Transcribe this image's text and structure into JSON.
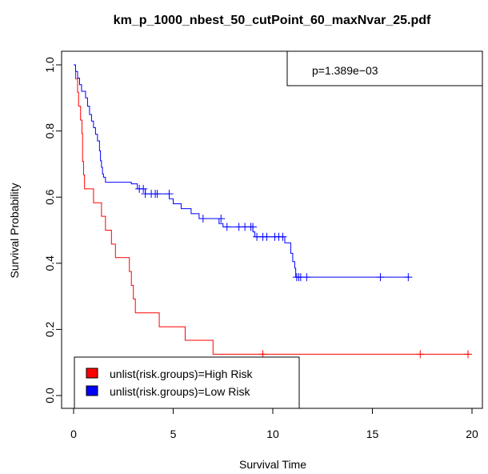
{
  "chart_data": {
    "type": "line",
    "title": "km_p_1000_nbest_50_cutPoint_60_maxNvar_25.pdf",
    "xlabel": "Survival Time",
    "ylabel": "Survival Probability",
    "xlim": [
      0,
      20
    ],
    "ylim": [
      0,
      1
    ],
    "x_ticks": [
      "0",
      "5",
      "10",
      "15",
      "20"
    ],
    "y_ticks": [
      "0.0",
      "0.2",
      "0.4",
      "0.6",
      "0.8",
      "1.0"
    ],
    "grid": false,
    "annotation": "p=1.389e−03",
    "legend_position": "bottom-left",
    "series": [
      {
        "name": "unlist(risk.groups)=High Risk",
        "color": "#ff0000",
        "steps": [
          [
            0,
            1.0
          ],
          [
            0.1,
            0.958
          ],
          [
            0.2,
            0.917
          ],
          [
            0.25,
            0.875
          ],
          [
            0.35,
            0.833
          ],
          [
            0.42,
            0.792
          ],
          [
            0.45,
            0.708
          ],
          [
            0.5,
            0.667
          ],
          [
            0.55,
            0.625
          ],
          [
            1.0,
            0.583
          ],
          [
            1.4,
            0.542
          ],
          [
            1.6,
            0.5
          ],
          [
            1.9,
            0.458
          ],
          [
            2.1,
            0.417
          ],
          [
            2.8,
            0.375
          ],
          [
            2.9,
            0.333
          ],
          [
            3.0,
            0.292
          ],
          [
            3.1,
            0.25
          ],
          [
            4.3,
            0.208
          ],
          [
            5.6,
            0.167
          ],
          [
            7.0,
            0.125
          ],
          [
            19.9,
            0.125
          ]
        ],
        "censor": [
          [
            9.5,
            0.125
          ],
          [
            17.4,
            0.125
          ],
          [
            19.8,
            0.125
          ]
        ]
      },
      {
        "name": "unlist(risk.groups)=Low Risk",
        "color": "#0000ff",
        "steps": [
          [
            0,
            1.0
          ],
          [
            0.1,
            0.98
          ],
          [
            0.2,
            0.96
          ],
          [
            0.3,
            0.94
          ],
          [
            0.4,
            0.92
          ],
          [
            0.6,
            0.9
          ],
          [
            0.7,
            0.875
          ],
          [
            0.8,
            0.85
          ],
          [
            0.9,
            0.83
          ],
          [
            1.0,
            0.81
          ],
          [
            1.1,
            0.79
          ],
          [
            1.2,
            0.77
          ],
          [
            1.3,
            0.74
          ],
          [
            1.35,
            0.71
          ],
          [
            1.4,
            0.69
          ],
          [
            1.45,
            0.67
          ],
          [
            1.5,
            0.66
          ],
          [
            1.6,
            0.645
          ],
          [
            2.9,
            0.64
          ],
          [
            3.2,
            0.625
          ],
          [
            3.6,
            0.61
          ],
          [
            4.8,
            0.595
          ],
          [
            5.0,
            0.58
          ],
          [
            5.4,
            0.565
          ],
          [
            5.9,
            0.55
          ],
          [
            6.3,
            0.535
          ],
          [
            7.3,
            0.52
          ],
          [
            7.5,
            0.51
          ],
          [
            8.8,
            0.51
          ],
          [
            9.0,
            0.495
          ],
          [
            9.1,
            0.48
          ],
          [
            10.6,
            0.462
          ],
          [
            10.9,
            0.43
          ],
          [
            11.0,
            0.405
          ],
          [
            11.1,
            0.385
          ],
          [
            11.15,
            0.358
          ],
          [
            16.9,
            0.358
          ]
        ],
        "censor": [
          [
            3.3,
            0.625
          ],
          [
            3.5,
            0.625
          ],
          [
            3.6,
            0.61
          ],
          [
            3.9,
            0.61
          ],
          [
            4.1,
            0.61
          ],
          [
            4.2,
            0.61
          ],
          [
            4.8,
            0.61
          ],
          [
            6.5,
            0.535
          ],
          [
            7.4,
            0.535
          ],
          [
            7.7,
            0.51
          ],
          [
            8.3,
            0.51
          ],
          [
            8.6,
            0.51
          ],
          [
            8.9,
            0.51
          ],
          [
            9.0,
            0.51
          ],
          [
            9.2,
            0.48
          ],
          [
            9.5,
            0.48
          ],
          [
            9.7,
            0.48
          ],
          [
            10.1,
            0.48
          ],
          [
            10.3,
            0.48
          ],
          [
            10.5,
            0.48
          ],
          [
            11.2,
            0.358
          ],
          [
            11.3,
            0.358
          ],
          [
            11.4,
            0.358
          ],
          [
            11.7,
            0.358
          ],
          [
            15.4,
            0.358
          ],
          [
            16.8,
            0.358
          ]
        ]
      }
    ]
  }
}
